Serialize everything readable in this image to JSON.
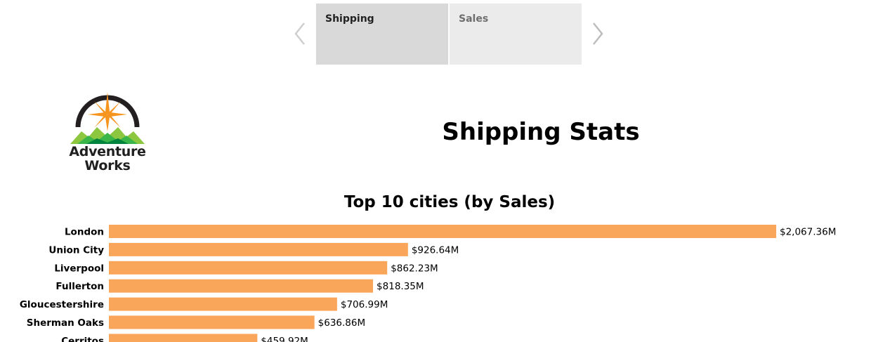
{
  "story": {
    "tabs": [
      {
        "label": "Shipping",
        "active": true
      },
      {
        "label": "Sales",
        "active": false
      }
    ]
  },
  "logo": {
    "line1": "Adventure",
    "line2": "Works",
    "colors": {
      "ring": "#231f20",
      "star": "#f7941d",
      "mountains": [
        "#8dc63f",
        "#39b54a",
        "#00843d"
      ]
    }
  },
  "dashboard": {
    "title": "Shipping Stats"
  },
  "colors": {
    "bar": "#faa65a",
    "tab_active_bg": "#d9d9d9",
    "tab_inactive_bg": "#ebebeb"
  },
  "chart_data": {
    "type": "bar",
    "orientation": "horizontal",
    "title": "Top 10 cities (by Sales)",
    "xlabel": "",
    "ylabel": "",
    "grid": false,
    "categories": [
      "London",
      "Union City",
      "Liverpool",
      "Fullerton",
      "Gloucestershire",
      "Sherman Oaks",
      "Cerritos"
    ],
    "values": [
      2067.36,
      926.64,
      862.23,
      818.35,
      706.99,
      636.86,
      459.92
    ],
    "value_labels": [
      "$2,067.36M",
      "$926.64M",
      "$862.23M",
      "$818.35M",
      "$706.99M",
      "$636.86M",
      "$459.92M"
    ],
    "xlim": [
      0,
      2067.36
    ]
  }
}
